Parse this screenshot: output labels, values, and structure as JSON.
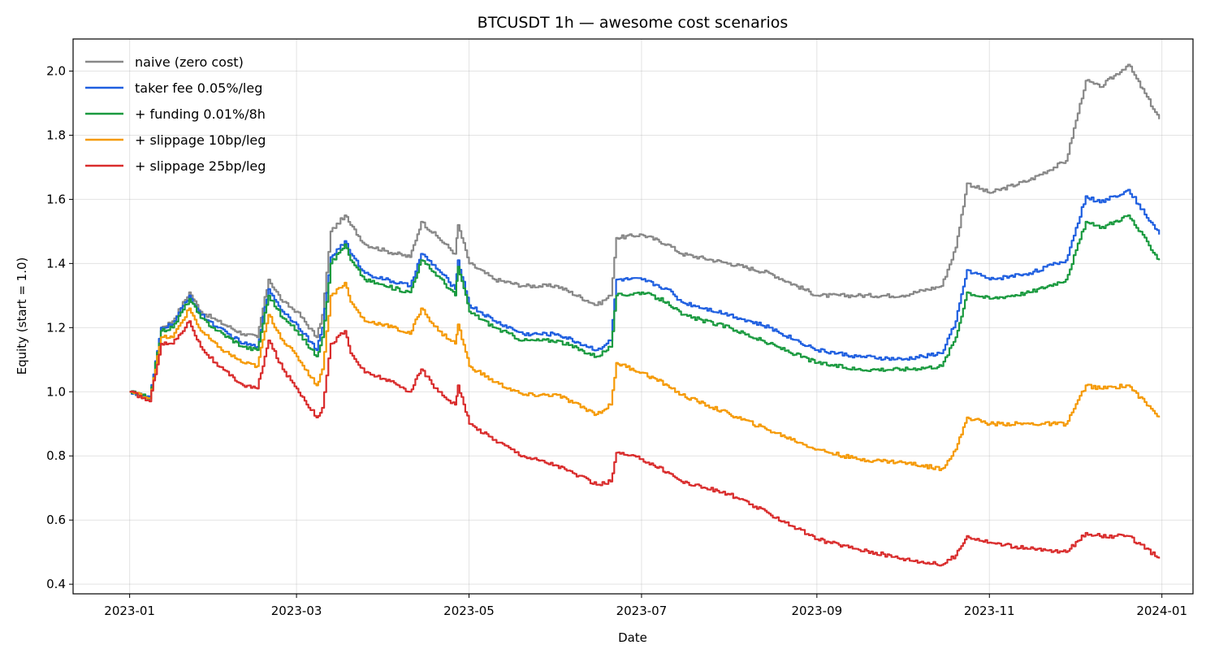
{
  "chart_data": {
    "type": "line",
    "title": "BTCUSDT 1h — awesome cost scenarios",
    "xlabel": "Date",
    "ylabel": "Equity (start = 1.0)",
    "xlim": [
      "2022-12-12",
      "2024-01-12"
    ],
    "ylim": [
      0.37,
      2.1
    ],
    "x_ticks": [
      "2023-01-01",
      "2023-03-01",
      "2023-05-01",
      "2023-07-01",
      "2023-09-01",
      "2023-11-01",
      "2024-01-01"
    ],
    "x_tick_labels": [
      "2023-01",
      "2023-03",
      "2023-05",
      "2023-07",
      "2023-09",
      "2023-11",
      "2024-01"
    ],
    "y_ticks": [
      0.4,
      0.6,
      0.8,
      1.0,
      1.2,
      1.4,
      1.6,
      1.8,
      2.0
    ],
    "y_tick_labels": [
      "0.4",
      "0.6",
      "0.8",
      "1.0",
      "1.2",
      "1.4",
      "1.6",
      "1.8",
      "2.0"
    ],
    "grid": true,
    "legend_position": "top-left",
    "x": [
      "2023-01-01",
      "2023-01-08",
      "2023-01-12",
      "2023-01-16",
      "2023-01-22",
      "2023-01-26",
      "2023-02-01",
      "2023-02-10",
      "2023-02-15",
      "2023-02-19",
      "2023-02-24",
      "2023-03-01",
      "2023-03-08",
      "2023-03-10",
      "2023-03-13",
      "2023-03-18",
      "2023-03-20",
      "2023-03-25",
      "2023-04-01",
      "2023-04-10",
      "2023-04-14",
      "2023-04-20",
      "2023-04-26",
      "2023-04-27",
      "2023-05-01",
      "2023-05-10",
      "2023-05-20",
      "2023-06-01",
      "2023-06-15",
      "2023-06-20",
      "2023-06-22",
      "2023-07-01",
      "2023-07-10",
      "2023-07-15",
      "2023-08-01",
      "2023-08-15",
      "2023-09-01",
      "2023-09-15",
      "2023-10-01",
      "2023-10-15",
      "2023-10-20",
      "2023-10-24",
      "2023-11-01",
      "2023-11-15",
      "2023-11-28",
      "2023-12-05",
      "2023-12-10",
      "2023-12-20",
      "2023-12-31"
    ],
    "series": [
      {
        "name": "naive (zero cost)",
        "color": "#888888",
        "values": [
          1.0,
          0.98,
          1.2,
          1.22,
          1.31,
          1.25,
          1.22,
          1.18,
          1.17,
          1.35,
          1.28,
          1.25,
          1.17,
          1.24,
          1.5,
          1.55,
          1.52,
          1.46,
          1.44,
          1.42,
          1.53,
          1.48,
          1.43,
          1.52,
          1.4,
          1.35,
          1.33,
          1.33,
          1.27,
          1.3,
          1.48,
          1.49,
          1.46,
          1.43,
          1.4,
          1.37,
          1.3,
          1.3,
          1.3,
          1.33,
          1.45,
          1.65,
          1.62,
          1.66,
          1.72,
          1.97,
          1.95,
          2.02,
          1.85
        ]
      },
      {
        "name": "taker fee 0.05%/leg",
        "color": "#1f5fe0",
        "values": [
          1.0,
          0.98,
          1.2,
          1.21,
          1.3,
          1.24,
          1.2,
          1.15,
          1.14,
          1.32,
          1.25,
          1.21,
          1.13,
          1.2,
          1.42,
          1.47,
          1.43,
          1.37,
          1.35,
          1.33,
          1.43,
          1.38,
          1.32,
          1.41,
          1.27,
          1.22,
          1.18,
          1.18,
          1.13,
          1.16,
          1.35,
          1.35,
          1.32,
          1.28,
          1.24,
          1.2,
          1.13,
          1.11,
          1.1,
          1.12,
          1.22,
          1.38,
          1.35,
          1.37,
          1.41,
          1.61,
          1.59,
          1.63,
          1.49
        ]
      },
      {
        "name": "+ funding 0.01%/8h",
        "color": "#1a9a3f",
        "values": [
          1.0,
          0.98,
          1.19,
          1.2,
          1.29,
          1.23,
          1.19,
          1.14,
          1.13,
          1.3,
          1.23,
          1.19,
          1.11,
          1.17,
          1.4,
          1.46,
          1.41,
          1.35,
          1.33,
          1.31,
          1.41,
          1.36,
          1.3,
          1.39,
          1.25,
          1.2,
          1.16,
          1.16,
          1.11,
          1.14,
          1.3,
          1.31,
          1.28,
          1.24,
          1.2,
          1.15,
          1.09,
          1.07,
          1.07,
          1.08,
          1.17,
          1.31,
          1.29,
          1.31,
          1.35,
          1.53,
          1.51,
          1.55,
          1.41
        ]
      },
      {
        "name": "+ slippage 10bp/leg",
        "color": "#f59a06",
        "values": [
          1.0,
          0.98,
          1.17,
          1.17,
          1.26,
          1.19,
          1.14,
          1.09,
          1.08,
          1.24,
          1.16,
          1.11,
          1.02,
          1.07,
          1.3,
          1.34,
          1.28,
          1.22,
          1.21,
          1.18,
          1.26,
          1.19,
          1.15,
          1.21,
          1.08,
          1.03,
          0.99,
          0.99,
          0.93,
          0.96,
          1.09,
          1.06,
          1.02,
          0.99,
          0.93,
          0.88,
          0.82,
          0.79,
          0.78,
          0.76,
          0.82,
          0.92,
          0.9,
          0.9,
          0.9,
          1.02,
          1.01,
          1.02,
          0.92
        ]
      },
      {
        "name": "+ slippage 25bp/leg",
        "color": "#d92c2c",
        "values": [
          1.0,
          0.97,
          1.15,
          1.15,
          1.22,
          1.14,
          1.08,
          1.02,
          1.01,
          1.16,
          1.07,
          1.01,
          0.92,
          0.95,
          1.15,
          1.19,
          1.12,
          1.06,
          1.04,
          1.0,
          1.07,
          1.0,
          0.96,
          1.02,
          0.9,
          0.85,
          0.8,
          0.77,
          0.71,
          0.72,
          0.81,
          0.79,
          0.75,
          0.72,
          0.68,
          0.62,
          0.54,
          0.51,
          0.48,
          0.46,
          0.49,
          0.55,
          0.53,
          0.51,
          0.5,
          0.56,
          0.55,
          0.55,
          0.48
        ]
      }
    ]
  }
}
